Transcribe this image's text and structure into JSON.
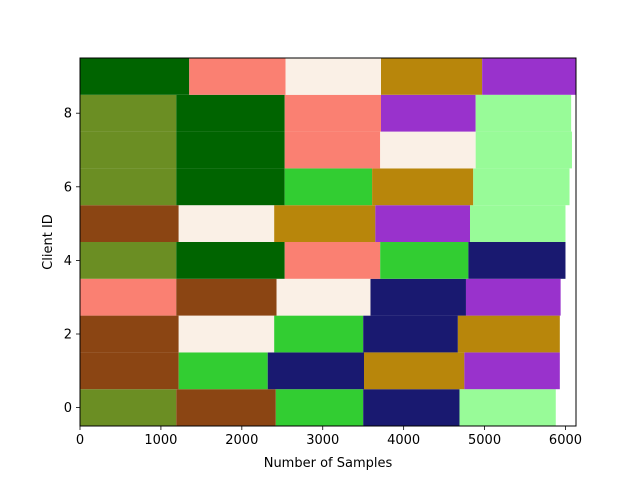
{
  "chart_data": {
    "type": "bar",
    "orientation": "horizontal-stacked",
    "title": "",
    "xlabel": "Number of Samples",
    "ylabel": "Client ID",
    "xlim": [
      0,
      6130
    ],
    "ylim": [
      -0.5,
      9.5
    ],
    "xticks": [
      0,
      1000,
      2000,
      3000,
      4000,
      5000,
      6000
    ],
    "yticks": [
      0,
      2,
      4,
      6,
      8
    ],
    "grid": false,
    "legend": "none",
    "categories": [
      0,
      1,
      2,
      3,
      4,
      5,
      6,
      7,
      8,
      9
    ],
    "segments": [
      [
        {
          "value": 1190,
          "color": "#6b8e23"
        },
        {
          "value": 1230,
          "color": "#8b4513"
        },
        {
          "value": 1080,
          "color": "#32cd32"
        },
        {
          "value": 1190,
          "color": "#191970"
        },
        {
          "value": 1190,
          "color": "#98fb98"
        }
      ],
      [
        {
          "value": 1220,
          "color": "#8b4513"
        },
        {
          "value": 1100,
          "color": "#32cd32"
        },
        {
          "value": 1190,
          "color": "#191970"
        },
        {
          "value": 1240,
          "color": "#b8860b"
        },
        {
          "value": 1180,
          "color": "#9932cc"
        }
      ],
      [
        {
          "value": 1220,
          "color": "#8b4513"
        },
        {
          "value": 1180,
          "color": "#faf0e6"
        },
        {
          "value": 1100,
          "color": "#32cd32"
        },
        {
          "value": 1170,
          "color": "#191970"
        },
        {
          "value": 1260,
          "color": "#b8860b"
        }
      ],
      [
        {
          "value": 1190,
          "color": "#fa8072"
        },
        {
          "value": 1240,
          "color": "#8b4513"
        },
        {
          "value": 1160,
          "color": "#faf0e6"
        },
        {
          "value": 1180,
          "color": "#191970"
        },
        {
          "value": 1170,
          "color": "#9932cc"
        }
      ],
      [
        {
          "value": 1190,
          "color": "#6b8e23"
        },
        {
          "value": 1340,
          "color": "#006400"
        },
        {
          "value": 1180,
          "color": "#fa8072"
        },
        {
          "value": 1090,
          "color": "#32cd32"
        },
        {
          "value": 1200,
          "color": "#191970"
        }
      ],
      [
        {
          "value": 1220,
          "color": "#8b4513"
        },
        {
          "value": 1180,
          "color": "#faf0e6"
        },
        {
          "value": 1250,
          "color": "#b8860b"
        },
        {
          "value": 1170,
          "color": "#9932cc"
        },
        {
          "value": 1180,
          "color": "#98fb98"
        }
      ],
      [
        {
          "value": 1190,
          "color": "#6b8e23"
        },
        {
          "value": 1340,
          "color": "#006400"
        },
        {
          "value": 1080,
          "color": "#32cd32"
        },
        {
          "value": 1250,
          "color": "#b8860b"
        },
        {
          "value": 1190,
          "color": "#98fb98"
        }
      ],
      [
        {
          "value": 1190,
          "color": "#6b8e23"
        },
        {
          "value": 1340,
          "color": "#006400"
        },
        {
          "value": 1180,
          "color": "#fa8072"
        },
        {
          "value": 1180,
          "color": "#faf0e6"
        },
        {
          "value": 1190,
          "color": "#98fb98"
        }
      ],
      [
        {
          "value": 1190,
          "color": "#6b8e23"
        },
        {
          "value": 1340,
          "color": "#006400"
        },
        {
          "value": 1190,
          "color": "#fa8072"
        },
        {
          "value": 1170,
          "color": "#9932cc"
        },
        {
          "value": 1180,
          "color": "#98fb98"
        }
      ],
      [
        {
          "value": 1350,
          "color": "#006400"
        },
        {
          "value": 1190,
          "color": "#fa8072"
        },
        {
          "value": 1180,
          "color": "#faf0e6"
        },
        {
          "value": 1250,
          "color": "#b8860b"
        },
        {
          "value": 1160,
          "color": "#9932cc"
        }
      ]
    ]
  }
}
